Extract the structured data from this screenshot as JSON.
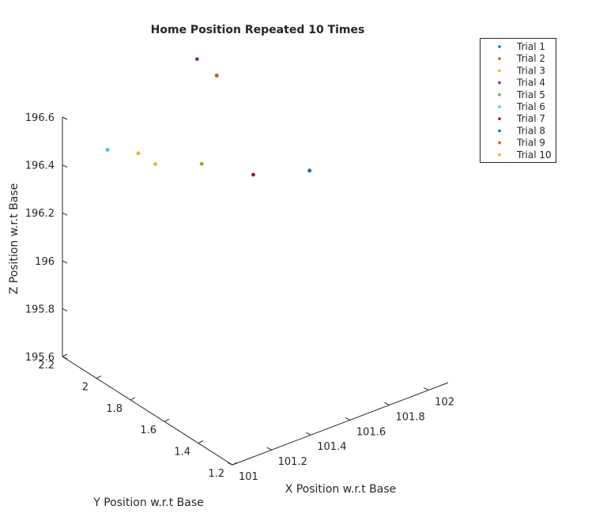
{
  "chart_data": {
    "type": "scatter",
    "projection": "3d",
    "title": "Home Position Repeated 10 Times",
    "xlabel": "X Position w.r.t Base",
    "ylabel": "Y Position w.r.t Base",
    "zlabel": "Z Position w.r.t Base",
    "xlim": [
      101,
      102.1
    ],
    "ylim": [
      1.2,
      2.2
    ],
    "zlim": [
      195.6,
      196.6
    ],
    "xticks": [
      "101",
      "101.2",
      "101.4",
      "101.6",
      "101.8",
      "102"
    ],
    "yticks": [
      "1.2",
      "1.4",
      "1.6",
      "1.8",
      "2",
      "2.2"
    ],
    "zticks": [
      "195.6",
      "195.8",
      "196",
      "196.2",
      "196.4",
      "196.6"
    ],
    "grid": false,
    "legend_position": "top-right",
    "series": [
      {
        "name": "Trial 1",
        "color": "#0072BD",
        "points": [
          {
            "x": 102.0,
            "y": 1.9,
            "z": 196.2
          }
        ]
      },
      {
        "name": "Trial 2",
        "color": "#D95319",
        "points": [
          {
            "x": 101.7,
            "y": 2.1,
            "z": 196.6
          }
        ]
      },
      {
        "name": "Trial 3",
        "color": "#EDB120",
        "points": [
          {
            "x": 101.3,
            "y": 2.1,
            "z": 196.4
          }
        ]
      },
      {
        "name": "Trial 4",
        "color": "#7E2F8E",
        "points": [
          {
            "x": 101.6,
            "y": 2.1,
            "z": 196.7
          }
        ]
      },
      {
        "name": "Trial 5",
        "color": "#77AC30",
        "points": [
          {
            "x": 101.45,
            "y": 1.9,
            "z": 196.4
          }
        ]
      },
      {
        "name": "Trial 6",
        "color": "#4DBEEE",
        "points": [
          {
            "x": 101.1,
            "y": 2.05,
            "z": 196.5
          }
        ]
      },
      {
        "name": "Trial 7",
        "color": "#A2142F",
        "points": [
          {
            "x": 101.8,
            "y": 2.0,
            "z": 196.2
          }
        ]
      },
      {
        "name": "Trial 8",
        "color": "#0072BD",
        "points": [
          {
            "x": 102.0,
            "y": 1.9,
            "z": 196.2
          }
        ]
      },
      {
        "name": "Trial 9",
        "color": "#D95319",
        "points": [
          {
            "x": 101.7,
            "y": 2.1,
            "z": 196.6
          }
        ]
      },
      {
        "name": "Trial 10",
        "color": "#EDB120",
        "points": [
          {
            "x": 101.3,
            "y": 2.0,
            "z": 196.4
          }
        ]
      }
    ]
  }
}
